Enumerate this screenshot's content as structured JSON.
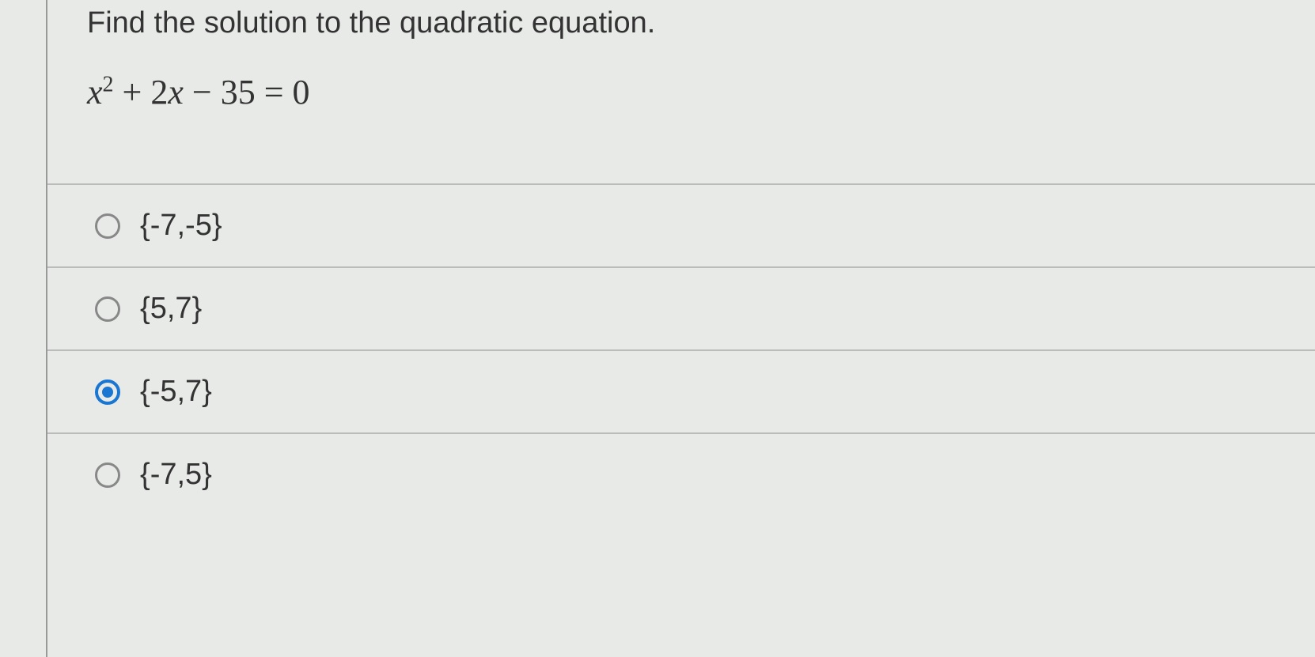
{
  "question": {
    "prompt": "Find the solution to the quadratic equation.",
    "equation_parts": {
      "x": "x",
      "exp": "2",
      "rest": " + 2",
      "x2": "x",
      "end": " − 35 = 0"
    }
  },
  "options": [
    {
      "label": "{-7,-5}",
      "selected": false
    },
    {
      "label": "{5,7}",
      "selected": false
    },
    {
      "label": "{-5,7}",
      "selected": true
    },
    {
      "label": "{-7,5}",
      "selected": false
    }
  ],
  "colors": {
    "background": "#e8eae8",
    "text": "#333333",
    "border": "#999999",
    "divider": "#bbbbbb",
    "radio_border": "#888888",
    "radio_selected": "#1976d2"
  }
}
